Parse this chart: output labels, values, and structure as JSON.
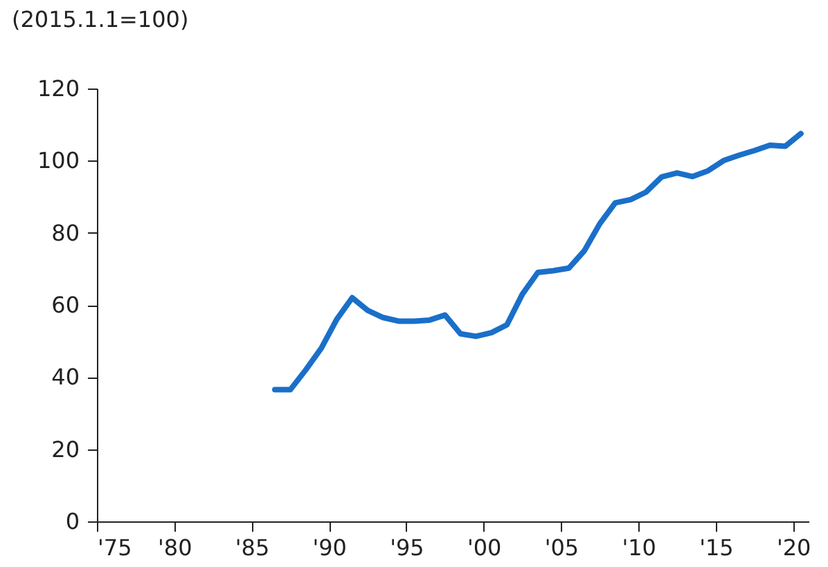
{
  "chart_data": {
    "type": "line",
    "ylabel": "(2015.1.1=100)",
    "x": [
      1986.5,
      1987.5,
      1988.5,
      1989.5,
      1990.5,
      1991.5,
      1992.5,
      1993.5,
      1994.5,
      1995.5,
      1996.5,
      1997.5,
      1998.5,
      1999.5,
      2000.5,
      2001.5,
      2002.5,
      2003.5,
      2004.5,
      2005.5,
      2006.5,
      2007.5,
      2008.5,
      2009.5,
      2010.5,
      2011.5,
      2012.5,
      2013.5,
      2014.5,
      2015.5,
      2016.5,
      2017.5,
      2018.5,
      2019.5,
      2020.5
    ],
    "series": [
      {
        "color": "#1a6fc9",
        "values": [
          36.5,
          36.5,
          42,
          48,
          56,
          62,
          58.5,
          56.5,
          55.5,
          55.5,
          55.8,
          57.2,
          52,
          51.3,
          52.3,
          54.5,
          63,
          69,
          69.5,
          70.2,
          75,
          82.5,
          88.3,
          89.2,
          91.3,
          95.5,
          96.6,
          95.6,
          97.2,
          100,
          101.5,
          102.8,
          104.3,
          104,
          107.5
        ]
      }
    ],
    "xlim": [
      1975,
      2021
    ],
    "xticks": [
      {
        "value": 1975,
        "label": "'75"
      },
      {
        "value": 1980,
        "label": "'80"
      },
      {
        "value": 1985,
        "label": "'85"
      },
      {
        "value": 1990,
        "label": "'90"
      },
      {
        "value": 1995,
        "label": "'95"
      },
      {
        "value": 2000,
        "label": "'00"
      },
      {
        "value": 2005,
        "label": "'05"
      },
      {
        "value": 2010,
        "label": "'10"
      },
      {
        "value": 2015,
        "label": "'15"
      },
      {
        "value": 2020,
        "label": "'20"
      }
    ],
    "ylim": [
      0,
      120
    ],
    "yticks": [
      0,
      20,
      40,
      60,
      80,
      100,
      120
    ],
    "grid": false,
    "marker": "none",
    "line_style": "solid"
  }
}
